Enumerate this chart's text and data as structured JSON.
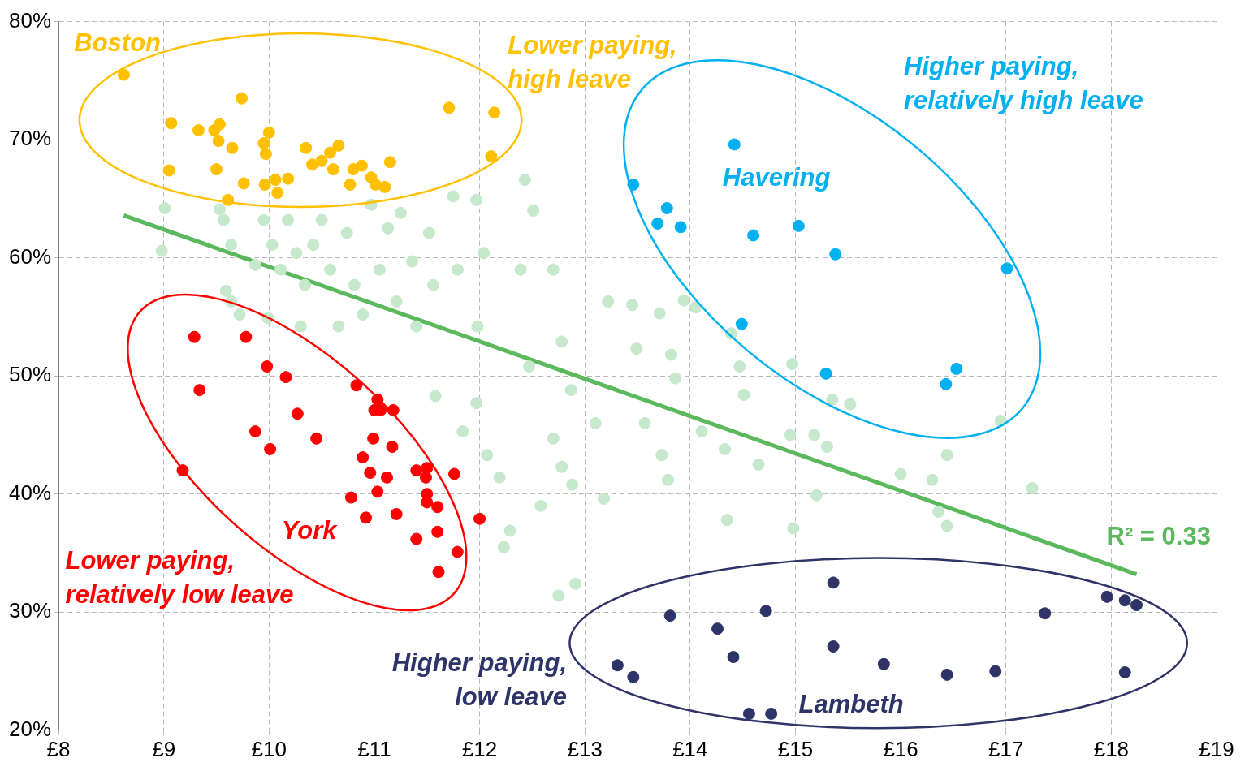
{
  "chart_data": {
    "type": "scatter",
    "marker": "circle",
    "grid": true,
    "legend": false,
    "xlim": [
      8,
      19
    ],
    "xticks": [
      {
        "value": 8,
        "label": "£8"
      },
      {
        "value": 9,
        "label": "£9"
      },
      {
        "value": 10,
        "label": "£10"
      },
      {
        "value": 11,
        "label": "£11"
      },
      {
        "value": 12,
        "label": "£12"
      },
      {
        "value": 13,
        "label": "£13"
      },
      {
        "value": 14,
        "label": "£14"
      },
      {
        "value": 15,
        "label": "£15"
      },
      {
        "value": 16,
        "label": "£16"
      },
      {
        "value": 17,
        "label": "£17"
      },
      {
        "value": 18,
        "label": "£18"
      },
      {
        "value": 19,
        "label": "£19"
      }
    ],
    "ylim": [
      20,
      80
    ],
    "yticks": [
      {
        "value": 20,
        "label": "20%"
      },
      {
        "value": 30,
        "label": "30%"
      },
      {
        "value": 40,
        "label": "40%"
      },
      {
        "value": 50,
        "label": "50%"
      },
      {
        "value": 60,
        "label": "60%"
      },
      {
        "value": 70,
        "label": "70%"
      },
      {
        "value": 80,
        "label": "80%"
      }
    ],
    "series": [
      {
        "color": "#c6e8cc",
        "x": [
          9.01,
          8.98,
          9.53,
          9.57,
          9.64,
          9.59,
          9.64,
          9.72,
          9.87,
          9.95,
          10.03,
          9.99,
          10.11,
          10.18,
          10.26,
          10.34,
          10.3,
          10.42,
          10.5,
          10.58,
          10.66,
          10.74,
          10.81,
          10.89,
          10.97,
          11.05,
          11.13,
          11.21,
          11.25,
          11.36,
          11.4,
          11.52,
          11.56,
          11.58,
          11.75,
          11.79,
          11.84,
          11.97,
          11.98,
          11.97,
          12.04,
          12.07,
          12.19,
          12.29,
          12.23,
          12.43,
          12.51,
          12.39,
          12.47,
          12.58,
          12.7,
          12.7,
          12.78,
          12.78,
          12.87,
          12.88,
          12.75,
          12.91,
          13.18,
          13.1,
          13.22,
          13.45,
          13.49,
          13.57,
          13.71,
          13.73,
          13.79,
          13.82,
          13.86,
          13.94,
          14.05,
          14.11,
          14.33,
          14.35,
          14.39,
          14.47,
          14.51,
          14.65,
          14.95,
          14.98,
          14.97,
          15.18,
          15.2,
          15.3,
          15.35,
          15.52,
          16.0,
          16.3,
          16.36,
          16.44,
          16.44,
          16.95,
          17.25
        ],
        "values": [
          64.2,
          60.6,
          64.1,
          63.2,
          61.1,
          57.2,
          56.3,
          55.2,
          59.4,
          63.2,
          61.1,
          54.9,
          59.0,
          63.2,
          60.4,
          57.7,
          54.2,
          61.1,
          63.2,
          59.0,
          54.2,
          62.1,
          57.7,
          55.2,
          64.5,
          59.0,
          62.5,
          56.3,
          63.8,
          59.7,
          54.2,
          62.1,
          57.7,
          48.3,
          65.2,
          59.0,
          45.3,
          64.9,
          54.2,
          47.7,
          60.4,
          43.3,
          41.4,
          36.9,
          35.5,
          66.6,
          64.0,
          59.0,
          50.8,
          39.0,
          44.7,
          59.0,
          52.9,
          42.3,
          48.8,
          40.8,
          31.4,
          32.4,
          39.6,
          46.0,
          56.3,
          56.0,
          52.3,
          46.0,
          55.3,
          43.3,
          41.2,
          51.8,
          49.8,
          56.4,
          55.8,
          45.3,
          43.8,
          37.8,
          53.6,
          50.8,
          48.4,
          42.5,
          45.0,
          37.1,
          51.0,
          45.0,
          39.9,
          44.0,
          48.0,
          47.6,
          41.7,
          41.2,
          38.5,
          43.3,
          37.3,
          46.2,
          40.5
        ]
      },
      {
        "name": "Lower paying, high leave",
        "color": "#ffc000",
        "x": [
          8.62,
          9.07,
          9.05,
          9.33,
          9.48,
          9.53,
          9.52,
          9.5,
          9.65,
          9.74,
          9.61,
          9.76,
          9.95,
          9.97,
          10.0,
          9.96,
          10.06,
          10.08,
          10.18,
          10.35,
          10.41,
          10.5,
          10.58,
          10.66,
          10.61,
          10.77,
          10.8,
          10.88,
          10.97,
          11.01,
          11.1,
          11.15,
          11.71,
          12.14,
          12.11
        ],
        "values": [
          75.5,
          71.4,
          67.4,
          70.8,
          70.8,
          71.3,
          69.9,
          67.5,
          69.3,
          73.5,
          64.9,
          66.3,
          69.7,
          68.8,
          70.6,
          66.2,
          66.6,
          65.5,
          66.7,
          69.3,
          67.9,
          68.2,
          68.9,
          69.5,
          67.5,
          66.2,
          67.5,
          67.8,
          66.8,
          66.2,
          66.0,
          68.1,
          72.7,
          72.3,
          68.6
        ]
      },
      {
        "name": "Higher paying, relatively high leave",
        "color": "#00b0f0",
        "x": [
          14.42,
          13.46,
          13.78,
          13.69,
          13.91,
          14.6,
          15.03,
          15.38,
          17.01,
          14.49,
          15.29,
          16.53,
          16.43
        ],
        "values": [
          69.6,
          66.2,
          64.2,
          62.9,
          62.6,
          61.9,
          62.7,
          60.3,
          59.1,
          54.4,
          50.2,
          50.6,
          49.3
        ]
      },
      {
        "name": "Lower paying, relatively low leave",
        "color": "#ff0000",
        "x": [
          9.29,
          9.78,
          9.34,
          9.98,
          10.16,
          9.87,
          10.01,
          10.27,
          10.45,
          9.18,
          10.83,
          11.03,
          11.0,
          11.06,
          11.18,
          10.99,
          11.17,
          10.89,
          10.96,
          11.12,
          11.03,
          10.78,
          10.92,
          11.21,
          11.4,
          11.5,
          11.49,
          11.5,
          11.5,
          11.6,
          11.76,
          12.0,
          11.4,
          11.6,
          11.79,
          11.61
        ],
        "values": [
          53.3,
          53.3,
          48.8,
          50.8,
          49.9,
          45.3,
          43.8,
          46.8,
          44.7,
          42.0,
          49.2,
          48.0,
          47.1,
          47.1,
          47.1,
          44.7,
          44.0,
          43.1,
          41.8,
          41.4,
          40.2,
          39.7,
          38.0,
          38.3,
          42.0,
          42.2,
          41.4,
          40.0,
          39.3,
          38.9,
          41.7,
          37.9,
          36.2,
          36.8,
          35.1,
          33.4
        ]
      },
      {
        "name": "Higher paying, low leave",
        "color": "#2f3468",
        "x": [
          13.81,
          14.26,
          14.72,
          15.36,
          13.31,
          13.46,
          14.41,
          15.36,
          15.84,
          16.44,
          16.9,
          17.37,
          17.96,
          18.13,
          18.24,
          18.13,
          14.56,
          14.77
        ],
        "values": [
          29.7,
          28.6,
          30.1,
          32.5,
          25.5,
          24.5,
          26.2,
          27.1,
          25.6,
          24.7,
          25.0,
          29.9,
          31.3,
          31.0,
          30.6,
          24.9,
          21.4,
          21.4
        ]
      },
      {
        "type": "line",
        "marker": "none",
        "color": "#5cb85c",
        "x": [
          8.62,
          18.24
        ],
        "values": [
          63.6,
          33.2
        ]
      }
    ],
    "annotations": [
      "Boston",
      "Havering",
      "York",
      "Lambeth",
      "R² = 0.33"
    ]
  }
}
